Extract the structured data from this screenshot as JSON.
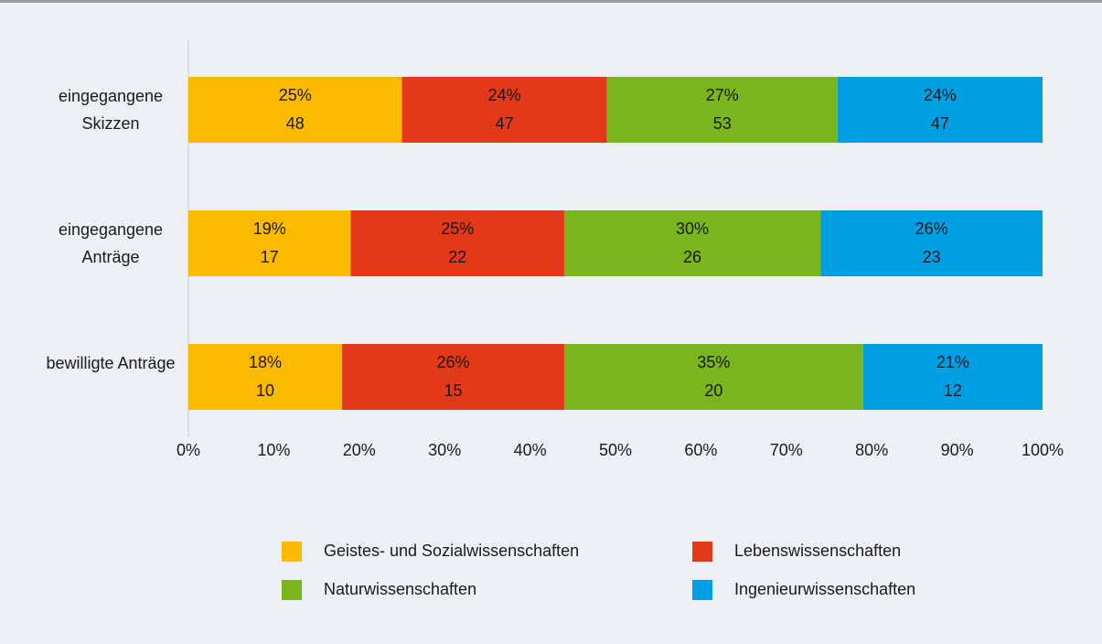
{
  "chart_data": {
    "type": "bar",
    "orientation": "horizontal",
    "stacked": true,
    "categories": [
      "eingegangene Skizzen",
      "eingegangene Anträge",
      "bewilligte Anträge"
    ],
    "series": [
      {
        "name": "Geistes- und Sozialwissenschaften",
        "color": "#fbb900",
        "values": [
          25,
          19,
          18
        ],
        "value_labels": [
          "25%",
          "19%",
          "18%"
        ],
        "counts": [
          48,
          17,
          10
        ]
      },
      {
        "name": "Lebenswissenschaften",
        "color": "#e4381b",
        "values": [
          24,
          25,
          26
        ],
        "value_labels": [
          "24%",
          "25%",
          "26%"
        ],
        "counts": [
          47,
          22,
          15
        ]
      },
      {
        "name": "Naturwissenschaften",
        "color": "#7ab51d",
        "values": [
          27,
          30,
          35
        ],
        "value_labels": [
          "27%",
          "30%",
          "35%"
        ],
        "counts": [
          53,
          26,
          20
        ]
      },
      {
        "name": "Ingenieurwissenschaften",
        "color": "#009fe3",
        "values": [
          24,
          26,
          21
        ],
        "value_labels": [
          "24%",
          "26%",
          "21%"
        ],
        "counts": [
          47,
          23,
          12
        ]
      }
    ],
    "xlim": [
      0,
      100
    ],
    "xticks": [
      {
        "value": 0,
        "label": "0%"
      },
      {
        "value": 10,
        "label": "10%"
      },
      {
        "value": 20,
        "label": "20%"
      },
      {
        "value": 30,
        "label": "30%"
      },
      {
        "value": 40,
        "label": "40%"
      },
      {
        "value": 50,
        "label": "50%"
      },
      {
        "value": 60,
        "label": "60%"
      },
      {
        "value": 70,
        "label": "70%"
      },
      {
        "value": 80,
        "label": "80%"
      },
      {
        "value": 90,
        "label": "90%"
      },
      {
        "value": 100,
        "label": "100%"
      }
    ],
    "legend": "bottom"
  }
}
